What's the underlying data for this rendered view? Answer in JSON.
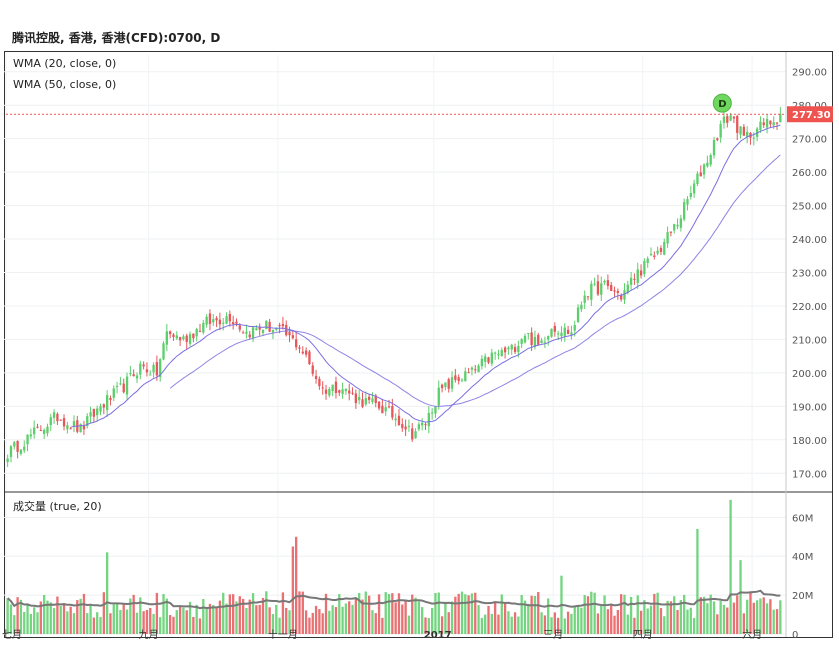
{
  "header": {
    "title": "腾讯控股, 香港, 香港(CFD):0700, D"
  },
  "legends": {
    "wma20": "WMA (20, close, 0)",
    "wma50": "WMA (50, close, 0)",
    "volume": "成交量 (true, 20)"
  },
  "price_marker": {
    "label": "277.30",
    "badge": "D",
    "color": "#ef5350"
  },
  "colors": {
    "up": "#5cce6b",
    "down": "#e5575b",
    "wma": "#7b6fe0",
    "volma": "#777777"
  },
  "chart_data": [
    {
      "type": "candlestick",
      "title": "腾讯控股, 香港, 香港(CFD):0700, D",
      "ylim": [
        165,
        295
      ],
      "yticks": [
        "170.00",
        "180.00",
        "190.00",
        "200.00",
        "210.00",
        "220.00",
        "230.00",
        "240.00",
        "250.00",
        "260.00",
        "270.00",
        "280.00",
        "290.00"
      ],
      "x_labels": [
        "七月",
        "九月",
        "十一月",
        "2017",
        "三月",
        "四月",
        "六月"
      ],
      "last_price": 277.3,
      "anchors": [
        [
          0,
          176
        ],
        [
          8,
          182
        ],
        [
          15,
          187
        ],
        [
          22,
          183
        ],
        [
          28,
          190
        ],
        [
          35,
          196
        ],
        [
          40,
          202
        ],
        [
          45,
          200
        ],
        [
          48,
          212
        ],
        [
          53,
          210
        ],
        [
          60,
          215
        ],
        [
          67,
          217
        ],
        [
          72,
          212
        ],
        [
          78,
          214
        ],
        [
          83,
          212
        ],
        [
          88,
          208
        ],
        [
          95,
          195
        ],
        [
          100,
          196
        ],
        [
          106,
          192
        ],
        [
          112,
          190
        ],
        [
          118,
          186
        ],
        [
          122,
          182
        ],
        [
          126,
          185
        ],
        [
          130,
          194
        ],
        [
          135,
          198
        ],
        [
          140,
          200
        ],
        [
          146,
          205
        ],
        [
          152,
          207
        ],
        [
          156,
          212
        ],
        [
          160,
          208
        ],
        [
          164,
          214
        ],
        [
          170,
          212
        ],
        [
          174,
          224
        ],
        [
          180,
          226
        ],
        [
          185,
          223
        ],
        [
          190,
          230
        ],
        [
          196,
          236
        ],
        [
          202,
          245
        ],
        [
          208,
          258
        ],
        [
          212,
          266
        ],
        [
          215,
          274
        ],
        [
          218,
          277
        ],
        [
          222,
          270
        ],
        [
          226,
          273
        ],
        [
          230,
          275
        ],
        [
          233,
          277.3
        ]
      ],
      "wma20_label": "WMA (20, close, 0)",
      "wma50_label": "WMA (50, close, 0)"
    },
    {
      "type": "bar",
      "title": "成交量 (true, 20)",
      "ylim": [
        0,
        72
      ],
      "yticks": [
        "0",
        "20M",
        "40M",
        "60M"
      ],
      "spikes": [
        [
          30,
          42
        ],
        [
          86,
          45
        ],
        [
          87,
          50
        ],
        [
          167,
          30
        ],
        [
          208,
          54
        ],
        [
          218,
          69
        ],
        [
          221,
          38
        ]
      ]
    }
  ]
}
